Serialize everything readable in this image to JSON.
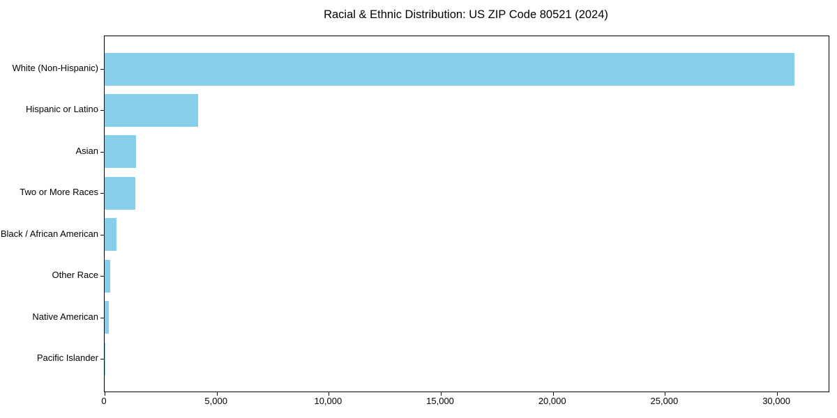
{
  "title": "Racial & Ethnic Distribution: US ZIP Code 80521 (2024)",
  "chart_data": {
    "type": "bar",
    "orientation": "horizontal",
    "title": "Racial & Ethnic Distribution: US ZIP Code 80521 (2024)",
    "categories": [
      "White (Non-Hispanic)",
      "Hispanic or Latino",
      "Asian",
      "Two or More Races",
      "Black / African American",
      "Other Race",
      "Native American",
      "Pacific Islander"
    ],
    "values": [
      30760,
      4160,
      1400,
      1365,
      540,
      240,
      180,
      30
    ],
    "xlabel": "",
    "ylabel": "",
    "xlim": [
      0,
      32300
    ],
    "x_ticks": [
      0,
      5000,
      10000,
      15000,
      20000,
      25000,
      30000
    ],
    "x_tick_labels": [
      "0",
      "5,000",
      "10,000",
      "15,000",
      "20,000",
      "25,000",
      "30,000"
    ],
    "bar_color": "#87CEEB",
    "axis_color": "#000000",
    "text_color": "#000000",
    "grid": false,
    "legend": null
  }
}
